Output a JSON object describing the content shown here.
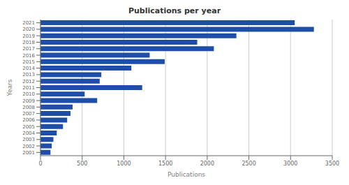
{
  "chart_data": {
    "type": "bar",
    "orientation": "horizontal",
    "title": "Publications per year",
    "x_label": "Publications",
    "y_label": "Years",
    "categories": [
      "2021",
      "2020",
      "2019",
      "2018",
      "2017",
      "2016",
      "2015",
      "2014",
      "2013",
      "2012",
      "2011",
      "2010",
      "2009",
      "2008",
      "2007",
      "2006",
      "2005",
      "2004",
      "2003",
      "2002",
      "2001"
    ],
    "values": [
      3050,
      3280,
      2350,
      1880,
      2080,
      1310,
      1490,
      1090,
      730,
      710,
      1220,
      530,
      680,
      385,
      360,
      320,
      270,
      195,
      155,
      135,
      120
    ],
    "color": "#1f4ea8",
    "xlim": [
      0,
      3500
    ],
    "xticks": [
      0,
      500,
      1000,
      1500,
      2000,
      2500,
      3000,
      3500
    ],
    "grid": true
  }
}
